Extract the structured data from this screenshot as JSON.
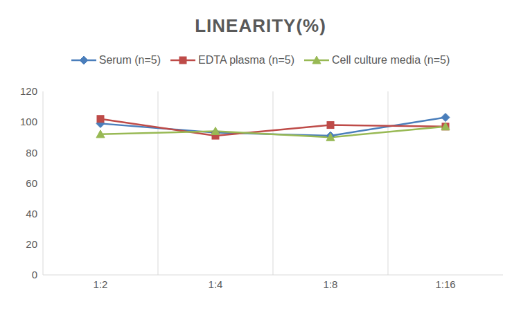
{
  "chart_data": {
    "type": "line",
    "title": "LINEARITY(%)",
    "categories": [
      "1:2",
      "1:4",
      "1:8",
      "1:16"
    ],
    "series": [
      {
        "name": "Serum (n=5)",
        "color": "#4a7ebb",
        "marker": "diamond",
        "values": [
          99,
          93,
          91,
          103
        ]
      },
      {
        "name": "EDTA plasma (n=5)",
        "color": "#be4b48",
        "marker": "square",
        "values": [
          102,
          91,
          98,
          97
        ]
      },
      {
        "name": "Cell culture media (n=5)",
        "color": "#98b954",
        "marker": "triangle",
        "values": [
          92,
          94,
          90,
          97
        ]
      }
    ],
    "ylim": [
      0,
      120
    ],
    "yticks": [
      0,
      20,
      40,
      60,
      80,
      100,
      120
    ],
    "grid": true,
    "legend": "top"
  }
}
